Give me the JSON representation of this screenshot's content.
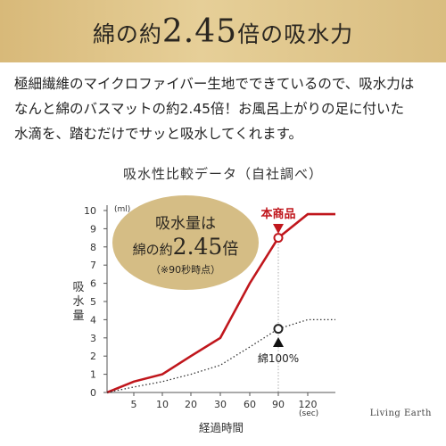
{
  "banner": {
    "title_part1": "綿の約",
    "title_part2": "2.45",
    "title_part3": "倍の",
    "title_part4": "吸水力"
  },
  "description": {
    "lines": [
      "極細繊維のマイクロファイバー生地でできているので、吸水力は",
      "なんと綿のバスマットの約2.45倍！お風呂上がりの足に付いた",
      "水滴を、踏むだけでサッと吸水してくれます。"
    ]
  },
  "watermark": "Living Earth",
  "colors": {
    "banner_gold": "#d8b979",
    "product_line": "#c0161c",
    "cotton_line": "#333333",
    "badge_gold": "#d5bd85"
  },
  "chart_data": {
    "type": "line",
    "title": "吸水性比較データ（自社調べ）",
    "xlabel": "経過時間",
    "xunit": "(sec)",
    "ylabel": "吸水量",
    "yunit": "(ml)",
    "ylim": [
      0,
      10
    ],
    "y_ticks": [
      "10",
      "9",
      "8",
      "7",
      "6",
      "5",
      "4",
      "3",
      "2",
      "1",
      "0"
    ],
    "x_ticks": [
      "5",
      "10",
      "20",
      "30",
      "60",
      "90",
      "120"
    ],
    "grid": false,
    "series": [
      {
        "name": "本商品",
        "style": "solid",
        "color": "#c0161c",
        "points": [
          {
            "x": 0,
            "y": 0
          },
          {
            "x": 5,
            "y": 0.6
          },
          {
            "x": 10,
            "y": 1.0
          },
          {
            "x": 20,
            "y": 2.0
          },
          {
            "x": 30,
            "y": 3.0
          },
          {
            "x": 60,
            "y": 6.0
          },
          {
            "x": 90,
            "y": 8.5
          },
          {
            "x": 120,
            "y": 9.8
          },
          {
            "x": 150,
            "y": 9.8
          }
        ]
      },
      {
        "name": "綿100%",
        "style": "dotted",
        "color": "#333333",
        "points": [
          {
            "x": 0,
            "y": 0
          },
          {
            "x": 5,
            "y": 0.3
          },
          {
            "x": 10,
            "y": 0.6
          },
          {
            "x": 20,
            "y": 1.0
          },
          {
            "x": 30,
            "y": 1.5
          },
          {
            "x": 60,
            "y": 2.5
          },
          {
            "x": 90,
            "y": 3.5
          },
          {
            "x": 120,
            "y": 4.0
          },
          {
            "x": 150,
            "y": 4.0
          }
        ]
      }
    ],
    "annotations": {
      "product_label": "本商品",
      "cotton_label": "綿100%",
      "highlight_x": 90,
      "badge_line1": "吸水量は",
      "badge_line2a": "綿の約",
      "badge_line2b": "2.45",
      "badge_line2c": "倍",
      "badge_line3": "（※90秒時点）"
    }
  }
}
